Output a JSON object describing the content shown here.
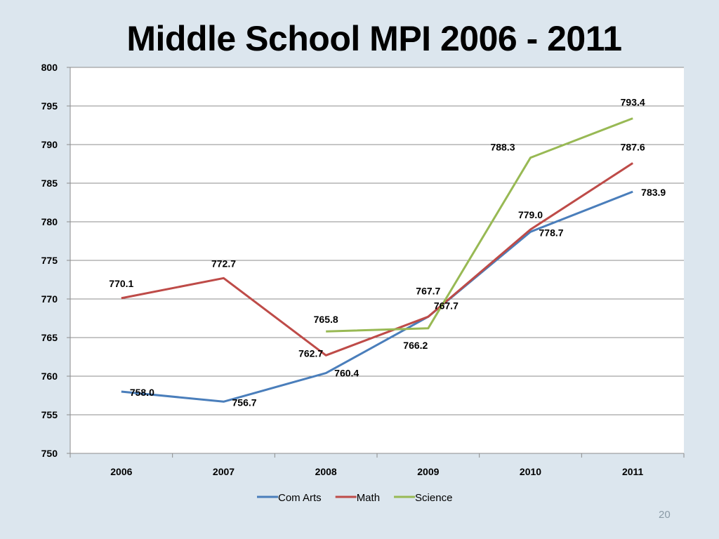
{
  "slide": {
    "title": "Middle School MPI 2006 - 2011",
    "page_number": "20"
  },
  "chart_data": {
    "type": "line",
    "categories": [
      "2006",
      "2007",
      "2008",
      "2009",
      "2010",
      "2011"
    ],
    "ylim": [
      750,
      800
    ],
    "yticks": [
      750,
      755,
      760,
      765,
      770,
      775,
      780,
      785,
      790,
      795,
      800
    ],
    "grid": true,
    "legend_position": "bottom",
    "series": [
      {
        "name": "Com Arts",
        "color": "#4a7ebb",
        "values": [
          758.0,
          756.7,
          760.4,
          767.7,
          778.7,
          783.9
        ],
        "labels": [
          "758.0",
          "756.7",
          "760.4",
          "767.7",
          "778.7",
          "783.9"
        ]
      },
      {
        "name": "Math",
        "color": "#be4b48",
        "values": [
          770.1,
          772.7,
          762.7,
          767.7,
          779.0,
          787.6
        ],
        "labels": [
          "770.1",
          "772.7",
          "762.7",
          "767.7",
          "779.0",
          "787.6"
        ]
      },
      {
        "name": "Science",
        "color": "#98b954",
        "values": [
          null,
          null,
          765.8,
          766.2,
          788.3,
          793.4
        ],
        "labels": [
          null,
          null,
          "765.8",
          "766.2",
          "788.3",
          "793.4"
        ]
      }
    ]
  }
}
